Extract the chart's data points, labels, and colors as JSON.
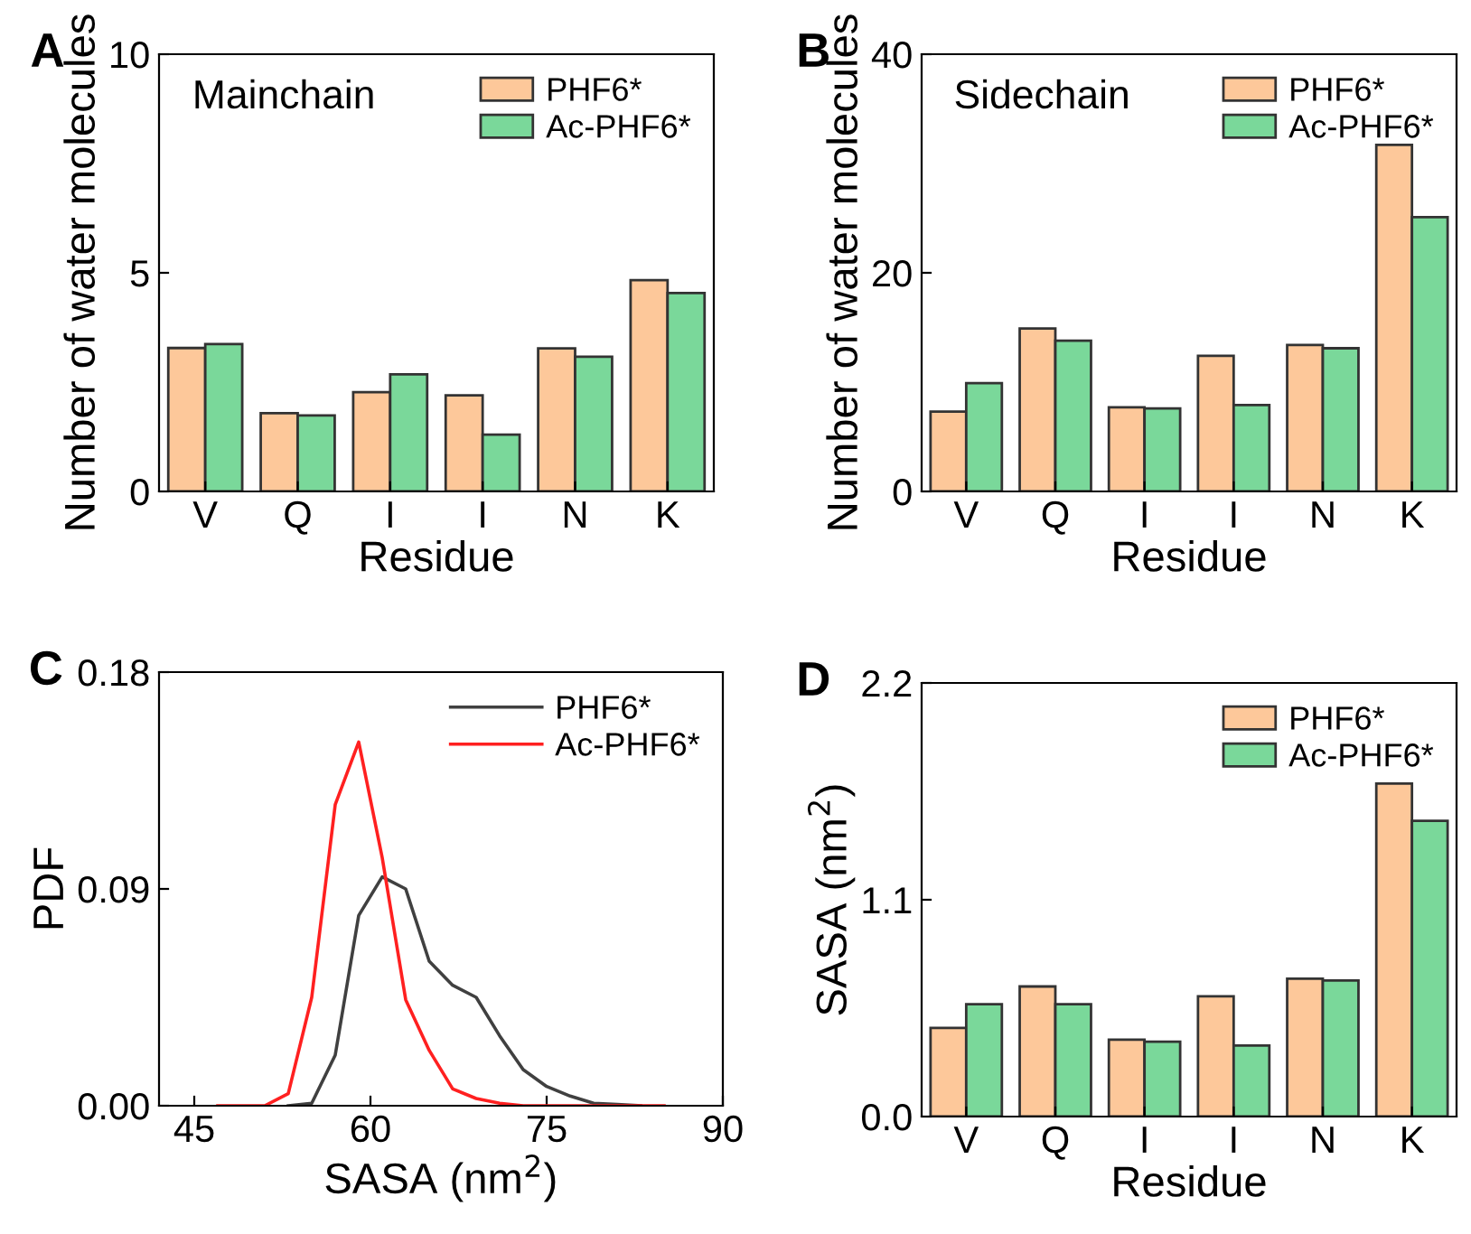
{
  "chart_data": [
    {
      "type": "bar",
      "title": "A",
      "annotations": [
        "Mainchain"
      ],
      "xlabel": "Residue",
      "ylabel": "Number of water molecules",
      "categories": [
        "V",
        "Q",
        "I",
        "I",
        "N",
        "K"
      ],
      "ylim": [
        0,
        10
      ],
      "yticks": [
        0,
        5,
        10
      ],
      "legend": "top right",
      "series": [
        {
          "name": "PHF6*",
          "color": "#fdc89a",
          "values": [
            3.28,
            1.79,
            2.27,
            2.2,
            3.27,
            4.83
          ]
        },
        {
          "name": "Ac-PHF6*",
          "color": "#7ad89a",
          "values": [
            3.37,
            1.74,
            2.68,
            1.3,
            3.08,
            4.54
          ]
        }
      ]
    },
    {
      "type": "bar",
      "title": "B",
      "annotations": [
        "Sidechain"
      ],
      "xlabel": "Residue",
      "ylabel": "Number of water molecules",
      "categories": [
        "V",
        "Q",
        "I",
        "I",
        "N",
        "K"
      ],
      "ylim": [
        0,
        40
      ],
      "yticks": [
        0,
        20,
        40
      ],
      "legend": "top right",
      "series": [
        {
          "name": "PHF6*",
          "color": "#fdc89a",
          "values": [
            7.3,
            14.9,
            7.7,
            12.4,
            13.4,
            31.7
          ]
        },
        {
          "name": "Ac-PHF6*",
          "color": "#7ad89a",
          "values": [
            9.9,
            13.8,
            7.6,
            7.9,
            13.1,
            25.1
          ]
        }
      ]
    },
    {
      "type": "line",
      "title": "C",
      "xlabel": "SASA (nm$^{2}$)",
      "ylabel": "PDF",
      "xlim": [
        42,
        90
      ],
      "xticks": [
        45,
        60,
        75,
        90
      ],
      "ylim": [
        0,
        0.18
      ],
      "yticks": [
        {
          "value": 0,
          "label": "0.00"
        },
        {
          "value": 0.09,
          "label": "0.09"
        },
        {
          "value": 0.18,
          "label": "0.18"
        }
      ],
      "legend": "top right",
      "series": [
        {
          "name": "PHF6*",
          "color": "#404040",
          "x": [
            53,
            55,
            57,
            59,
            61,
            63,
            65,
            67,
            69,
            71,
            73,
            75,
            77,
            79,
            81,
            83
          ],
          "values": [
            0,
            0.001,
            0.021,
            0.079,
            0.095,
            0.09,
            0.06,
            0.05,
            0.045,
            0.029,
            0.015,
            0.008,
            0.004,
            0.001,
            0.0005,
            0
          ]
        },
        {
          "name": "Ac-PHF6*",
          "color": "#ff2020",
          "x": [
            47,
            49,
            51,
            53,
            55,
            57,
            59,
            61,
            63,
            65,
            67,
            69,
            71,
            73,
            75,
            77,
            79,
            81,
            83,
            85
          ],
          "values": [
            0,
            0,
            0,
            0.005,
            0.045,
            0.125,
            0.151,
            0.103,
            0.044,
            0.023,
            0.007,
            0.003,
            0.001,
            0,
            0,
            0,
            0,
            0,
            0,
            0
          ]
        }
      ]
    },
    {
      "type": "bar",
      "title": "D",
      "xlabel": "Residue",
      "ylabel": "SASA (nm$^{2}$)",
      "categories": [
        "V",
        "Q",
        "I",
        "I",
        "N",
        "K"
      ],
      "ylim": [
        0,
        2.2
      ],
      "yticks": [
        {
          "value": 0,
          "label": "0.0"
        },
        {
          "value": 1.1,
          "label": "1.1"
        },
        {
          "value": 2.2,
          "label": "2.2"
        }
      ],
      "legend": "top right",
      "series": [
        {
          "name": "PHF6*",
          "color": "#fdc89a",
          "values": [
            0.45,
            0.66,
            0.39,
            0.61,
            0.7,
            1.69
          ]
        },
        {
          "name": "Ac-PHF6*",
          "color": "#7ad89a",
          "values": [
            0.57,
            0.57,
            0.38,
            0.36,
            0.69,
            1.5
          ]
        }
      ]
    }
  ]
}
